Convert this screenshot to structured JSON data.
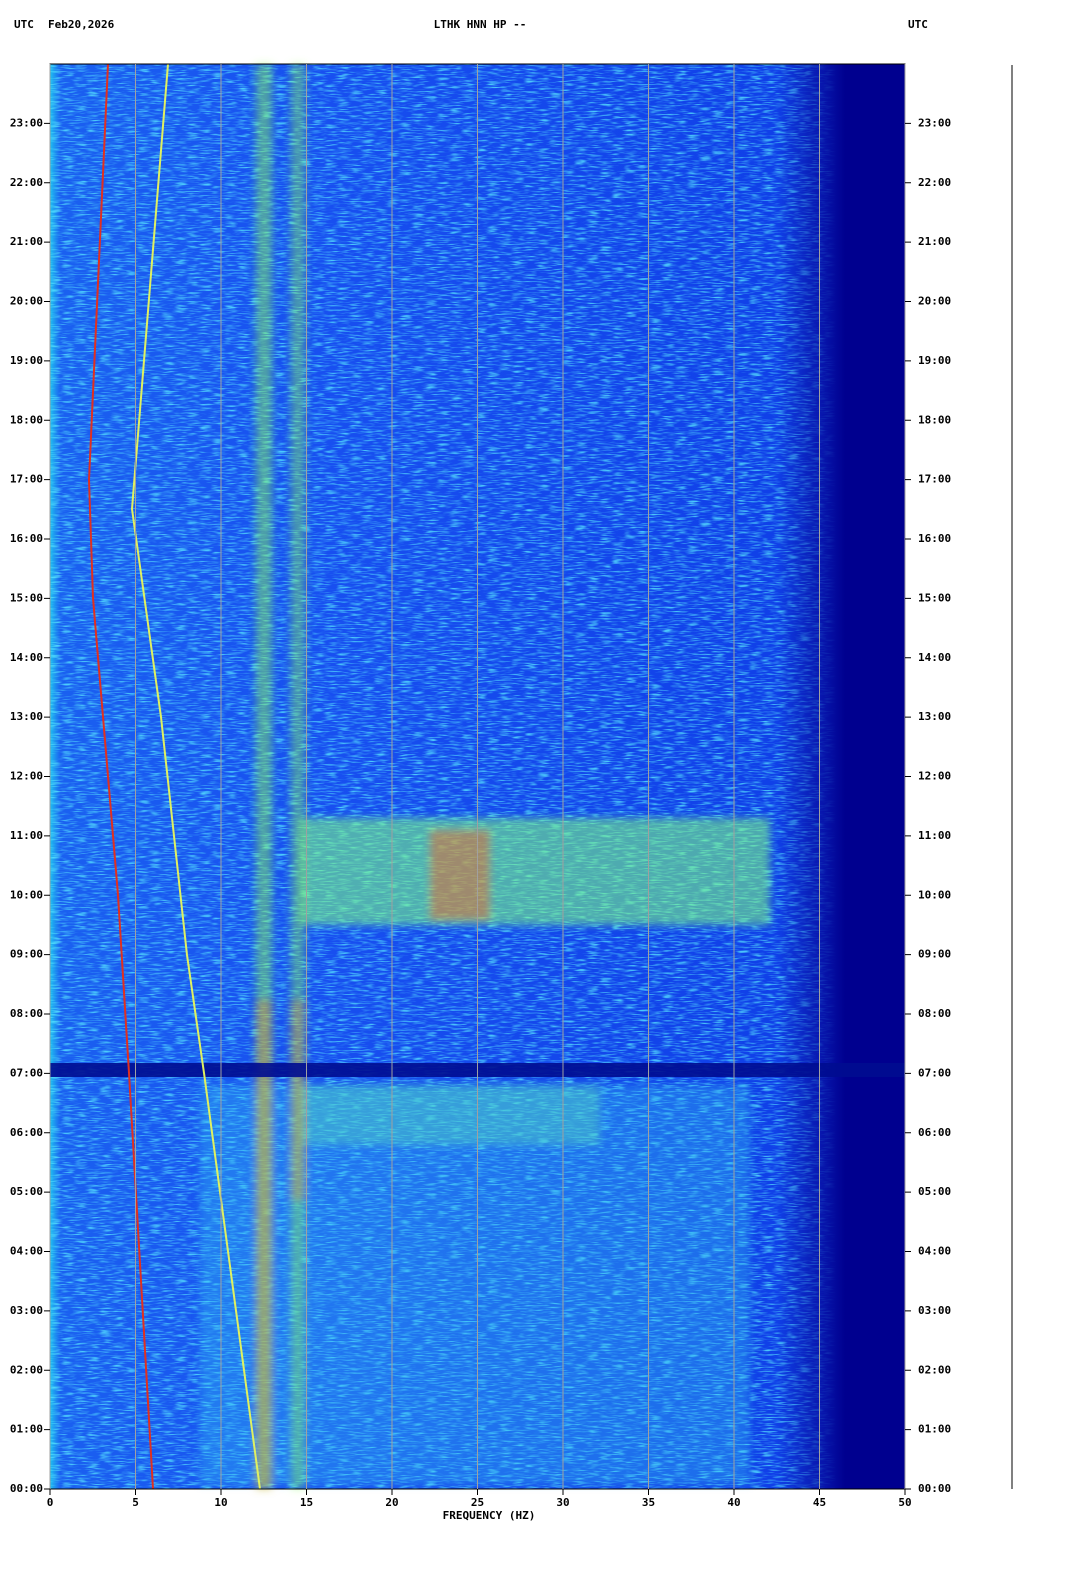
{
  "chart_data": {
    "type": "spectrogram",
    "timezone_left": "UTC",
    "date": "Feb20,2026",
    "title": "LTHK HNN HP --",
    "timezone_right": "UTC",
    "xlabel": "FREQUENCY (HZ)",
    "xlim": [
      0,
      50
    ],
    "xticks": [
      0,
      5,
      10,
      15,
      20,
      25,
      30,
      35,
      40,
      45,
      50
    ],
    "ylim": [
      0,
      24
    ],
    "yticks": [
      {
        "value": 0,
        "label": "00:00"
      },
      {
        "value": 1,
        "label": "01:00"
      },
      {
        "value": 2,
        "label": "02:00"
      },
      {
        "value": 3,
        "label": "03:00"
      },
      {
        "value": 4,
        "label": "04:00"
      },
      {
        "value": 5,
        "label": "05:00"
      },
      {
        "value": 6,
        "label": "06:00"
      },
      {
        "value": 7,
        "label": "07:00"
      },
      {
        "value": 8,
        "label": "08:00"
      },
      {
        "value": 9,
        "label": "09:00"
      },
      {
        "value": 10,
        "label": "10:00"
      },
      {
        "value": 11,
        "label": "11:00"
      },
      {
        "value": 12,
        "label": "12:00"
      },
      {
        "value": 13,
        "label": "13:00"
      },
      {
        "value": 14,
        "label": "14:00"
      },
      {
        "value": 15,
        "label": "15:00"
      },
      {
        "value": 16,
        "label": "16:00"
      },
      {
        "value": 17,
        "label": "17:00"
      },
      {
        "value": 18,
        "label": "18:00"
      },
      {
        "value": 19,
        "label": "19:00"
      },
      {
        "value": 20,
        "label": "20:00"
      },
      {
        "value": 21,
        "label": "21:00"
      },
      {
        "value": 22,
        "label": "22:00"
      },
      {
        "value": 23,
        "label": "23:00"
      }
    ],
    "grid": true
  }
}
